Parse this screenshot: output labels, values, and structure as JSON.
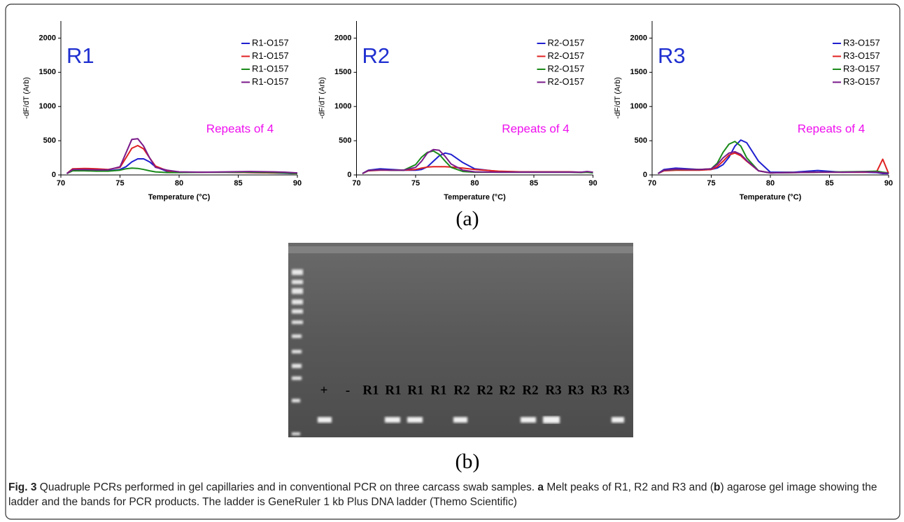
{
  "chart_data": [
    {
      "type": "line",
      "annotation_title": "R1",
      "annotation_note": "Repeats of 4",
      "xlabel": "Temperature (°C)",
      "ylabel": "-dF/dT (Arb)",
      "xlim": [
        70,
        90
      ],
      "ylim": [
        0,
        2250
      ],
      "xticks": [
        70,
        75,
        80,
        85,
        90
      ],
      "yticks": [
        0,
        500,
        1000,
        1500,
        2000
      ],
      "x": [
        70.5,
        71,
        72,
        73,
        74,
        75,
        75.5,
        76,
        76.5,
        77,
        77.5,
        78,
        79,
        80,
        82,
        84,
        86,
        88,
        89,
        89.5,
        90
      ],
      "series": [
        {
          "name": "R1-O157",
          "color": "#1f1fd0",
          "values": [
            20,
            70,
            65,
            60,
            60,
            80,
            120,
            190,
            235,
            235,
            190,
            120,
            50,
            40,
            40,
            40,
            35,
            30,
            25,
            20,
            20
          ]
        },
        {
          "name": "R1-O157",
          "color": "#e02020",
          "values": [
            20,
            90,
            95,
            90,
            80,
            110,
            250,
            390,
            430,
            380,
            250,
            130,
            60,
            40,
            40,
            40,
            35,
            30,
            30,
            25,
            20
          ]
        },
        {
          "name": "R1-O157",
          "color": "#1a8a1a",
          "values": [
            20,
            60,
            60,
            55,
            55,
            70,
            90,
            100,
            95,
            80,
            60,
            45,
            35,
            35,
            40,
            40,
            40,
            35,
            30,
            25,
            20
          ]
        },
        {
          "name": "R1-O157",
          "color": "#7a1a8a",
          "values": [
            20,
            80,
            80,
            75,
            75,
            120,
            320,
            520,
            530,
            420,
            250,
            110,
            70,
            45,
            40,
            45,
            50,
            45,
            40,
            35,
            30
          ]
        }
      ]
    },
    {
      "type": "line",
      "annotation_title": "R2",
      "annotation_note": "Repeats of 4",
      "xlabel": "Temperature (°C)",
      "ylabel": "-dF/dT (Arb)",
      "xlim": [
        70,
        90
      ],
      "ylim": [
        0,
        2250
      ],
      "xticks": [
        70,
        75,
        80,
        85,
        90
      ],
      "yticks": [
        0,
        500,
        1000,
        1500,
        2000
      ],
      "x": [
        70.5,
        71,
        72,
        73,
        74,
        75,
        75.5,
        76,
        76.5,
        77,
        77.5,
        78,
        79,
        80,
        82,
        84,
        86,
        88,
        89,
        89.5,
        90
      ],
      "series": [
        {
          "name": "R2-O157",
          "color": "#1f1fd0",
          "values": [
            20,
            70,
            90,
            80,
            70,
            70,
            80,
            120,
            200,
            280,
            320,
            300,
            180,
            90,
            50,
            45,
            45,
            45,
            40,
            45,
            40
          ]
        },
        {
          "name": "R2-O157",
          "color": "#e02020",
          "values": [
            20,
            60,
            70,
            70,
            70,
            80,
            100,
            115,
            120,
            120,
            120,
            115,
            100,
            80,
            55,
            45,
            45,
            45,
            40,
            40,
            35
          ]
        },
        {
          "name": "R2-O157",
          "color": "#1a8a1a",
          "values": [
            20,
            65,
            75,
            70,
            70,
            150,
            260,
            330,
            350,
            300,
            200,
            110,
            50,
            40,
            40,
            40,
            40,
            40,
            35,
            40,
            30
          ]
        },
        {
          "name": "R2-O157",
          "color": "#7a1a8a",
          "values": [
            20,
            65,
            75,
            70,
            70,
            110,
            200,
            320,
            370,
            360,
            270,
            160,
            70,
            45,
            40,
            40,
            40,
            40,
            40,
            50,
            40
          ]
        }
      ]
    },
    {
      "type": "line",
      "annotation_title": "R3",
      "annotation_note": "Repeats of 4",
      "xlabel": "Temperature (°C)",
      "ylabel": "-dF/dT (Arb)",
      "xlim": [
        70,
        90
      ],
      "ylim": [
        0,
        2250
      ],
      "xticks": [
        70,
        75,
        80,
        85,
        90
      ],
      "yticks": [
        0,
        500,
        1000,
        1500,
        2000
      ],
      "x": [
        70.5,
        71,
        72,
        73,
        74,
        75,
        75.5,
        76,
        76.5,
        77,
        77.5,
        78,
        79,
        80,
        82,
        84,
        86,
        88,
        89,
        89.5,
        90
      ],
      "series": [
        {
          "name": "R3-O157",
          "color": "#1f1fd0",
          "values": [
            20,
            80,
            100,
            90,
            80,
            80,
            100,
            150,
            260,
            420,
            510,
            470,
            200,
            40,
            40,
            65,
            40,
            40,
            35,
            20,
            20
          ]
        },
        {
          "name": "R3-O157",
          "color": "#e02020",
          "values": [
            20,
            60,
            70,
            70,
            70,
            80,
            120,
            200,
            290,
            320,
            280,
            200,
            60,
            30,
            35,
            40,
            40,
            40,
            50,
            230,
            20
          ]
        },
        {
          "name": "R3-O157",
          "color": "#1a8a1a",
          "values": [
            20,
            70,
            80,
            80,
            80,
            90,
            170,
            330,
            450,
            490,
            420,
            250,
            60,
            30,
            35,
            40,
            45,
            50,
            55,
            40,
            30
          ]
        },
        {
          "name": "R3-O157",
          "color": "#7a1a8a",
          "values": [
            20,
            70,
            85,
            80,
            80,
            90,
            150,
            250,
            320,
            340,
            300,
            210,
            60,
            30,
            35,
            40,
            40,
            45,
            40,
            30,
            25
          ]
        }
      ]
    }
  ],
  "panel_labels": [
    "(a)",
    "(b)"
  ],
  "gel": {
    "lane_labels": [
      "+",
      "-",
      "R1",
      "R1",
      "R1",
      "R1",
      "R2",
      "R2",
      "R2",
      "R2",
      "R3",
      "R3",
      "R3",
      "R3"
    ]
  },
  "caption": {
    "figure": "Fig. 3",
    "text_1": " Quadruple PCRs performed in gel capillaries and in conventional PCR on three carcass swab samples. ",
    "panel_a": "a",
    "text_2": " Melt peaks of R1, R2 and R3 and (",
    "panel_b": "b",
    "text_3": ") agarose gel image showing the ladder and the bands for PCR products. The ladder is GeneRuler 1 kb Plus DNA ladder (Themo Scientific)"
  }
}
